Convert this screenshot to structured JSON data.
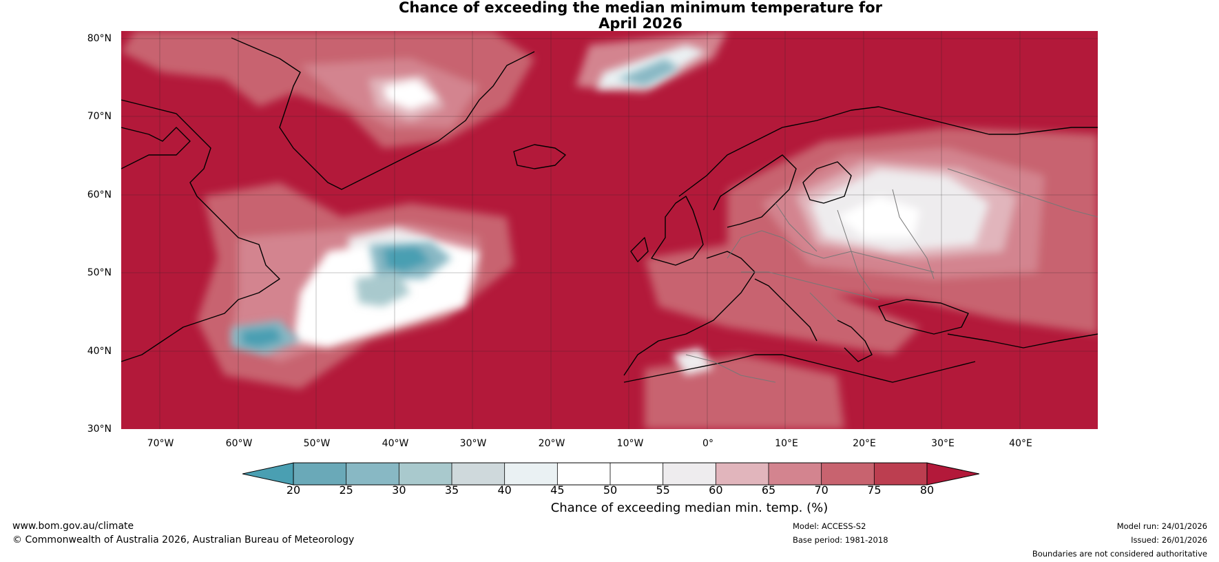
{
  "title": {
    "line1": "Chance of exceeding the median minimum temperature for",
    "line2": "April 2026"
  },
  "map": {
    "latitude_labels": [
      "80°N",
      "70°N",
      "60°N",
      "50°N",
      "40°N",
      "30°N"
    ],
    "longitude_labels": [
      "70°W",
      "60°W",
      "50°W",
      "40°W",
      "30°W",
      "20°W",
      "10°W",
      "0°",
      "10°E",
      "20°E",
      "30°E",
      "40°E"
    ],
    "extent": {
      "lon_min": -75,
      "lon_max": 50,
      "lat_min": 30,
      "lat_max": 81
    }
  },
  "colorbar": {
    "ticks": [
      "20",
      "25",
      "30",
      "35",
      "40",
      "45",
      "50",
      "55",
      "60",
      "65",
      "70",
      "75",
      "80"
    ],
    "colors": [
      "#4a9fb2",
      "#6aa9b8",
      "#88b8c4",
      "#a9c9cd",
      "#cfd9dc",
      "#eaf1f3",
      "#ffffff",
      "#ffffff",
      "#eeecee",
      "#e1b5bc",
      "#d3848f",
      "#c8636f",
      "#bc3e50",
      "#b3193a"
    ],
    "label": "Chance of exceeding median min. temp. (%)"
  },
  "footer": {
    "website": "www.bom.gov.au/climate",
    "copyright": "© Commonwealth of Australia 2026, Australian Bureau of Meteorology",
    "model": "Model: ACCESS-S2",
    "base_period": "Base period: 1981-2018",
    "model_run": "Model run: 24/01/2026",
    "issued": "Issued: 26/01/2026",
    "disclaimer": "Boundaries are not considered authoritative"
  }
}
